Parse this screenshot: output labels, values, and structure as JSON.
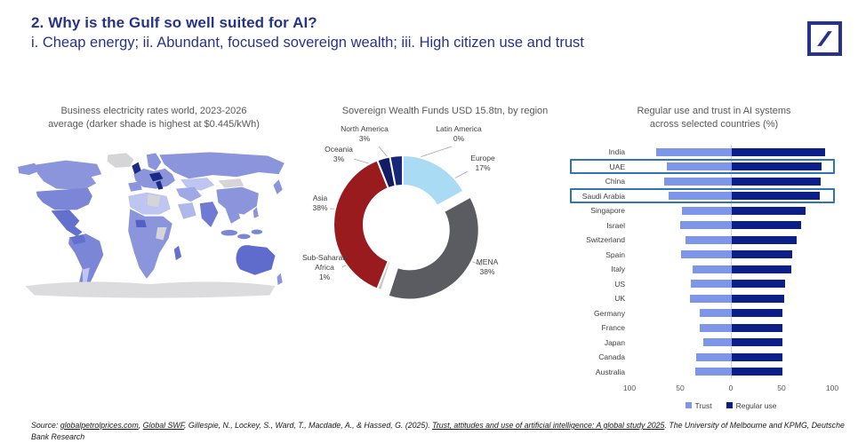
{
  "header": {
    "title": "2. Why is the Gulf so well suited for AI?",
    "subtitle": "i. Cheap energy; ii. Abundant, focused sovereign wealth; iii. High citizen use and trust",
    "accent_color": "#27338B",
    "logo": "deutsche-bank-slash-logo"
  },
  "chart_data": [
    {
      "type": "choropleth",
      "title_lines": [
        "Business electricity rates world, 2023-2026",
        "average (darker shade is highest at $0.445/kWh)"
      ],
      "title": "Business electricity rates world, 2023-2026 average (darker shade is highest at $0.445/kWh)",
      "unit": "$/kWh",
      "max_value_label": "$0.445/kWh",
      "shading_note": "darker shade = higher electricity rate; gray = no data",
      "colors": {
        "base": "#8B95DB",
        "medium": "#7B87D6",
        "dark": "#6470CE",
        "darkest": "#1C2A86",
        "light": "#BDC5F0",
        "no_data": "#D5D5D7",
        "antarctica": "#DCDCDE"
      }
    },
    {
      "type": "pie",
      "donut": true,
      "title": "Sovereign Wealth Funds USD 15.8tn, by region",
      "total": "USD 15.8tn",
      "start_angle": "top",
      "direction": "clockwise",
      "slices": [
        {
          "label": "Latin America",
          "value": 0,
          "color": "#182878"
        },
        {
          "label": "Europe",
          "value": 17,
          "color": "#A9DCF4"
        },
        {
          "label": "MENA",
          "value": 38,
          "color": "#5A5C62",
          "exploded": true
        },
        {
          "label": "Sub-Saharan Africa",
          "value": 1,
          "color": "#C8C8C8"
        },
        {
          "label": "Asia",
          "value": 38,
          "color": "#9A1B1E"
        },
        {
          "label": "Oceania",
          "value": 3,
          "color": "#121C66"
        },
        {
          "label": "North America",
          "value": 3,
          "color": "#182878"
        }
      ]
    },
    {
      "type": "bar",
      "orientation": "diverging-horizontal",
      "title_lines": [
        "Regular use and trust in AI systems",
        "across selected countries (%)"
      ],
      "title": "Regular use and trust in AI systems across selected countries (%)",
      "categories": [
        "India",
        "UAE",
        "China",
        "Saudi Arabia",
        "Singapore",
        "Israel",
        "Switzerland",
        "Spain",
        "Italy",
        "US",
        "UK",
        "Germany",
        "France",
        "Japan",
        "Canada",
        "Australia"
      ],
      "series": [
        {
          "name": "Trust",
          "color": "#7E96E8",
          "direction": "left",
          "values": [
            75,
            64,
            67,
            62,
            49,
            51,
            46,
            50,
            39,
            40,
            41,
            32,
            32,
            28,
            35,
            36
          ]
        },
        {
          "name": "Regular use",
          "color": "#0C1E88",
          "direction": "right",
          "values": [
            92,
            89,
            88,
            87,
            73,
            68,
            64,
            60,
            59,
            53,
            52,
            50,
            50,
            50,
            50,
            50
          ]
        }
      ],
      "xlim": [
        -100,
        100
      ],
      "axis_ticks": [
        "100",
        "50",
        "0",
        "50",
        "100"
      ],
      "highlighted": [
        "UAE",
        "Saudi Arabia"
      ],
      "highlight_color": "#2E75B6",
      "legend_position": "bottom"
    }
  ],
  "footer": {
    "parts": [
      {
        "text": "Source: ",
        "underline": false
      },
      {
        "text": "globalpetrolprices.com",
        "underline": true
      },
      {
        "text": ", ",
        "underline": false
      },
      {
        "text": "Global SWF",
        "underline": true
      },
      {
        "text": ", Gillespie, N., Lockey, S., Ward, T., Macdade, A., & Hassed, G. (2025). ",
        "underline": false
      },
      {
        "text": "Trust, attitudes and use of artificial intelligence: A global study 2025",
        "underline": true
      },
      {
        "text": ". The University of Melbourne and KPMG, Deutsche Bank Research",
        "underline": false
      }
    ]
  }
}
